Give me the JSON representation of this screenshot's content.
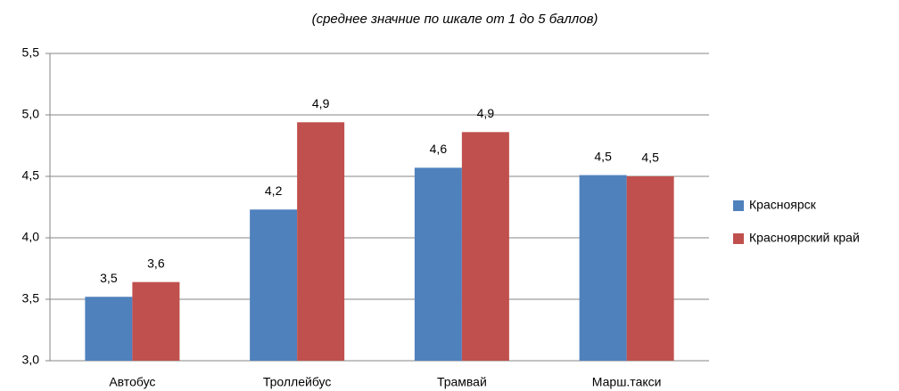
{
  "chart_data": {
    "type": "bar",
    "subtitle": "(среднее значние по шкале от 1 до 5 баллов)",
    "categories": [
      "Автобус",
      "Троллейбус",
      "Трамвай",
      "Марш.такси"
    ],
    "series": [
      {
        "name": "Красноярск",
        "color": "#4f81bd",
        "values": [
          3.52,
          4.23,
          4.57,
          4.51
        ],
        "value_labels": [
          "3,5",
          "4,2",
          "4,6",
          "4,5"
        ]
      },
      {
        "name": "Красноярский край",
        "color": "#c0504d",
        "values": [
          3.64,
          4.94,
          4.86,
          4.5
        ],
        "value_labels": [
          "3,6",
          "4,9",
          "4,9",
          "4,5"
        ]
      }
    ],
    "ylim": [
      3,
      5.5
    ],
    "yticks": [
      {
        "value": 3,
        "label": "3,0"
      },
      {
        "value": 3.5,
        "label": "3,5"
      },
      {
        "value": 4,
        "label": "4,0"
      },
      {
        "value": 4.5,
        "label": "4,5"
      },
      {
        "value": 5,
        "label": "5,0"
      },
      {
        "value": 5.5,
        "label": "5,5"
      }
    ],
    "grid": true,
    "legend": "right"
  }
}
